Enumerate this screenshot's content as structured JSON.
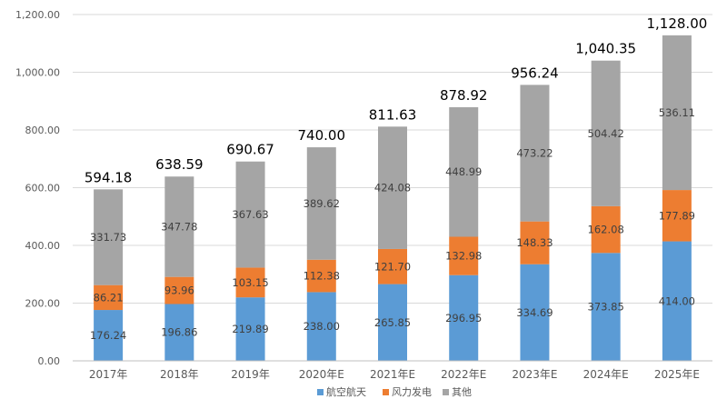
{
  "chart_data": {
    "type": "bar",
    "stacked": true,
    "title": "",
    "xlabel": "",
    "ylabel": "",
    "categories": [
      "2017年",
      "2018年",
      "2019年",
      "2020年E",
      "2021年E",
      "2022年E",
      "2023年E",
      "2024年E",
      "2025年E"
    ],
    "series": [
      {
        "name": "航空航天",
        "color": "#5B9BD5",
        "values": [
          176.24,
          196.86,
          219.89,
          238.0,
          265.85,
          296.95,
          334.69,
          373.85,
          414.0
        ],
        "labels": [
          "176.24",
          "196.86",
          "219.89",
          "238.00",
          "265.85",
          "296.95",
          "334.69",
          "373.85",
          "414.00"
        ]
      },
      {
        "name": "风力发电",
        "color": "#ED7D31",
        "values": [
          86.21,
          93.96,
          103.15,
          112.38,
          121.7,
          132.98,
          148.33,
          162.08,
          177.89
        ],
        "labels": [
          "86.21",
          "93.96",
          "103.15",
          "112.38",
          "121.70",
          "132.98",
          "148.33",
          "162.08",
          "177.89"
        ]
      },
      {
        "name": "其他",
        "color": "#A5A5A5",
        "values": [
          331.73,
          347.78,
          367.63,
          389.62,
          424.08,
          448.99,
          473.22,
          504.42,
          536.11
        ],
        "labels": [
          "331.73",
          "347.78",
          "367.63",
          "389.62",
          "424.08",
          "448.99",
          "473.22",
          "504.42",
          "536.11"
        ]
      }
    ],
    "totals": [
      594.18,
      638.59,
      690.67,
      740.0,
      811.63,
      878.92,
      956.24,
      1040.35,
      1128.0
    ],
    "total_labels": [
      "594.18",
      "638.59",
      "690.67",
      "740.00",
      "811.63",
      "878.92",
      "956.24",
      "1,040.35",
      "1,128.00"
    ],
    "ylim": [
      0,
      1200
    ],
    "yticks": [
      0,
      200,
      400,
      600,
      800,
      1000,
      1200
    ],
    "ytick_labels": [
      "0.00",
      "200.00",
      "400.00",
      "600.00",
      "800.00",
      "1,000.00",
      "1,200.00"
    ],
    "grid": true,
    "legend_position": "bottom"
  }
}
